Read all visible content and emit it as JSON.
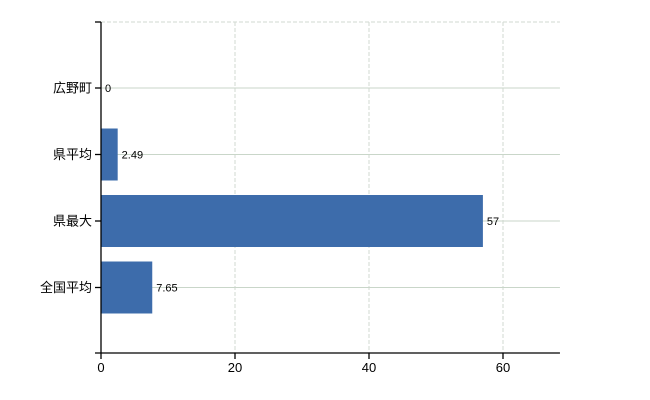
{
  "chart_data": {
    "type": "bar",
    "orientation": "horizontal",
    "title": "",
    "xlabel": "",
    "ylabel": "",
    "categories": [
      "広野町",
      "県平均",
      "県最大",
      "全国平均"
    ],
    "values": [
      0,
      2.49,
      57,
      7.65
    ],
    "value_labels": [
      "0",
      "2.49",
      "57",
      "7.65"
    ],
    "x_ticks": [
      0,
      20,
      40,
      60
    ],
    "x_tick_labels": [
      "0",
      "20",
      "40",
      "60"
    ],
    "xlim": [
      0,
      68.5
    ],
    "grid": true,
    "legend": "none",
    "colors": {
      "bar": "#3d6cab",
      "grid_horizontal": "#c9d6c9",
      "grid_vertical": "#d2d8d2",
      "axis": "#000000",
      "text": "#000000",
      "background": "#ffffff"
    }
  }
}
